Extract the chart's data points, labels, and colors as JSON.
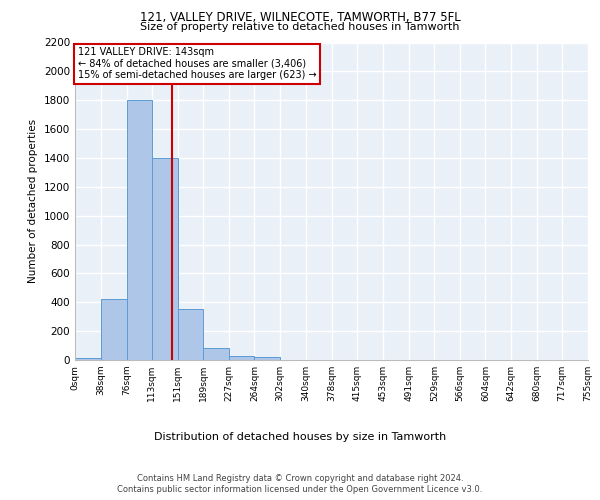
{
  "title1": "121, VALLEY DRIVE, WILNECOTE, TAMWORTH, B77 5FL",
  "title2": "Size of property relative to detached houses in Tamworth",
  "xlabel": "Distribution of detached houses by size in Tamworth",
  "ylabel": "Number of detached properties",
  "annotation_line1": "121 VALLEY DRIVE: 143sqm",
  "annotation_line2": "← 84% of detached houses are smaller (3,406)",
  "annotation_line3": "15% of semi-detached houses are larger (623) →",
  "property_size": 143,
  "bin_edges": [
    0,
    38,
    76,
    113,
    151,
    189,
    227,
    264,
    302,
    340,
    378,
    415,
    453,
    491,
    529,
    566,
    604,
    642,
    680,
    717,
    755
  ],
  "bar_heights": [
    15,
    420,
    1800,
    1400,
    350,
    80,
    30,
    20,
    0,
    0,
    0,
    0,
    0,
    0,
    0,
    0,
    0,
    0,
    0,
    0
  ],
  "bar_color": "#aec6e8",
  "bar_edge_color": "#5b9bd5",
  "red_line_color": "#cc0000",
  "bg_color": "#eaf0f8",
  "grid_color": "#ffffff",
  "ylim": [
    0,
    2200
  ],
  "yticks": [
    0,
    200,
    400,
    600,
    800,
    1000,
    1200,
    1400,
    1600,
    1800,
    2000,
    2200
  ],
  "tick_labels": [
    "0sqm",
    "38sqm",
    "76sqm",
    "113sqm",
    "151sqm",
    "189sqm",
    "227sqm",
    "264sqm",
    "302sqm",
    "340sqm",
    "378sqm",
    "415sqm",
    "453sqm",
    "491sqm",
    "529sqm",
    "566sqm",
    "604sqm",
    "642sqm",
    "680sqm",
    "717sqm",
    "755sqm"
  ],
  "footer1": "Contains HM Land Registry data © Crown copyright and database right 2024.",
  "footer2": "Contains public sector information licensed under the Open Government Licence v3.0."
}
